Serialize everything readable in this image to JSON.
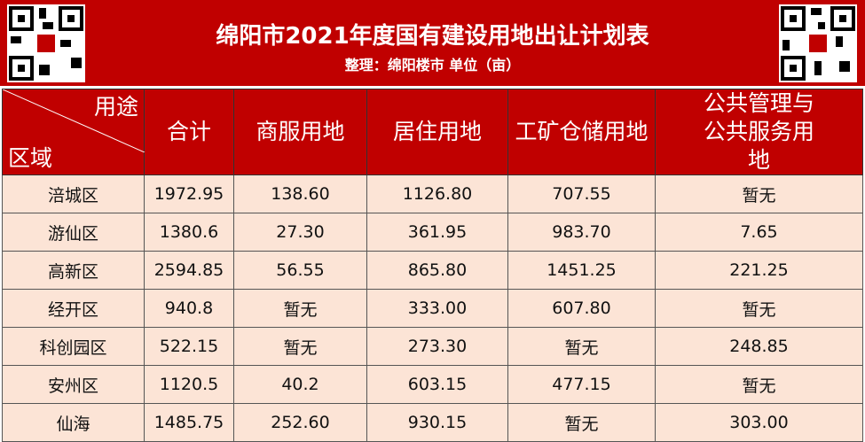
{
  "header": {
    "title": "绵阳市2021年度国有建设用地出让计划表",
    "subtitle": "整理：绵阳楼市  单位（亩）"
  },
  "table": {
    "corner_top": "用途",
    "corner_bottom": "区域",
    "columns": [
      "合计",
      "商服用地",
      "居住用地",
      "工矿仓储用地",
      "公共管理与公共服务用地"
    ],
    "rows": [
      [
        "涪城区",
        "1972.95",
        "138.60",
        "1126.80",
        "707.55",
        "暂无"
      ],
      [
        "游仙区",
        "1380.6",
        "27.30",
        "361.95",
        "983.70",
        "7.65"
      ],
      [
        "高新区",
        "2594.85",
        "56.55",
        "865.80",
        "1451.25",
        "221.25"
      ],
      [
        "经开区",
        "940.8",
        "暂无",
        "333.00",
        "607.80",
        "暂无"
      ],
      [
        "科创园区",
        "522.15",
        "暂无",
        "273.30",
        "暂无",
        "248.85"
      ],
      [
        "安州区",
        "1120.5",
        "40.2",
        "603.15",
        "477.15",
        "暂无"
      ],
      [
        "仙海",
        "1485.75",
        "252.60",
        "930.15",
        "暂无",
        "303.00"
      ]
    ]
  }
}
